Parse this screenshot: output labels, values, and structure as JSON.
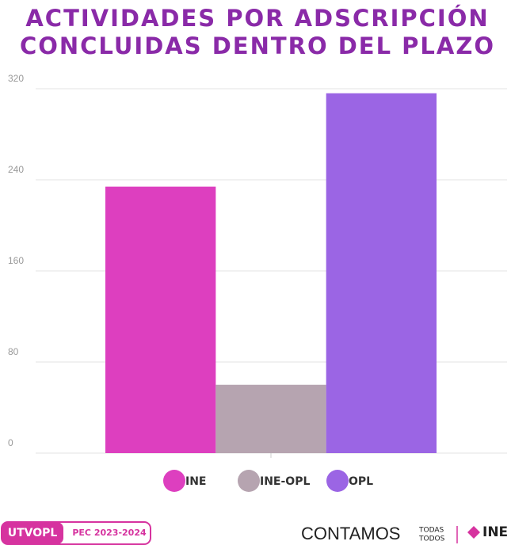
{
  "chart_data": {
    "type": "bar",
    "title": [
      "ACTIVIDADES POR ADSCRIPCIÓN",
      "CONCLUIDAS DENTRO DEL PLAZO"
    ],
    "categories": [
      null
    ],
    "series": [
      {
        "name": "INE",
        "color": "#dd3fbf",
        "values": [
          234
        ]
      },
      {
        "name": "INE-OPL",
        "color": "#b6a4b0",
        "values": [
          60
        ]
      },
      {
        "name": "OPL",
        "color": "#9b65e4",
        "values": [
          316
        ]
      }
    ],
    "ylim": [
      0,
      320
    ],
    "yticks": [
      0,
      80,
      160,
      240,
      320
    ],
    "grid": true,
    "legend": "bottom"
  },
  "footer": {
    "badge": "UTVOPL",
    "badge_label": "PEC 2023-2024",
    "brand": "CONTAMOS",
    "brand_small": [
      "TODAS",
      "TODOS"
    ],
    "logo": "INE"
  }
}
